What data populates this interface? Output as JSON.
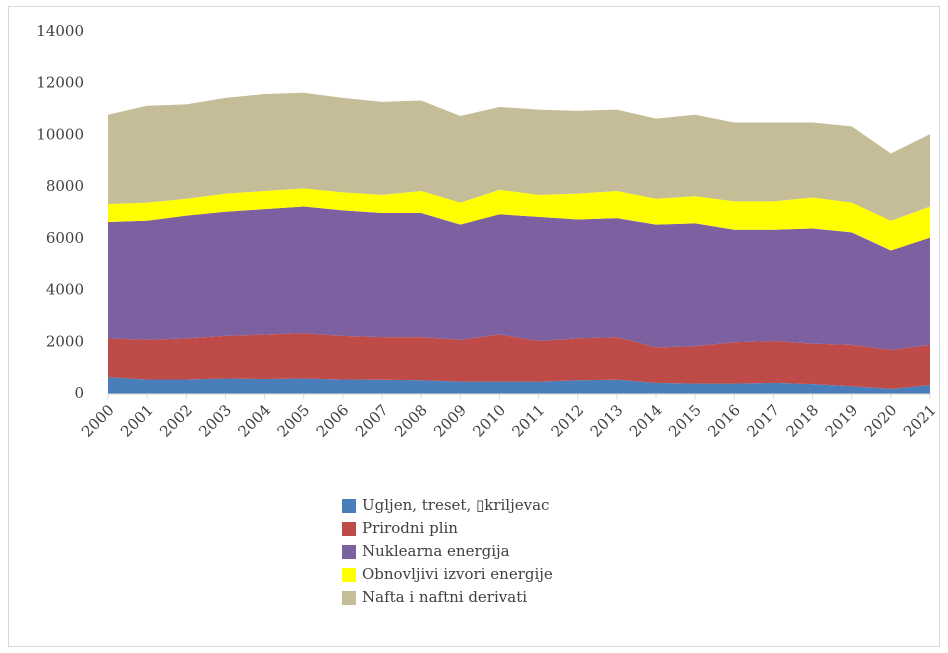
{
  "chart_data": {
    "type": "stacked_area",
    "categories": [
      "2000",
      "2001",
      "2002",
      "2003",
      "2004",
      "2005",
      "2006",
      "2007",
      "2008",
      "2009",
      "2010",
      "2011",
      "2012",
      "2013",
      "2014",
      "2015",
      "2016",
      "2017",
      "2018",
      "2019",
      "2020",
      "2021"
    ],
    "series": [
      {
        "name": "Ugljen, treset, ▯kriljevac",
        "color": "#4a7ebb",
        "values": [
          650,
          560,
          560,
          600,
          580,
          600,
          560,
          550,
          530,
          480,
          480,
          480,
          530,
          550,
          430,
          400,
          400,
          430,
          380,
          300,
          200,
          350
        ]
      },
      {
        "name": "Prirodni plin",
        "color": "#be4b48",
        "values": [
          1500,
          1540,
          1590,
          1650,
          1720,
          1750,
          1690,
          1650,
          1670,
          1620,
          1820,
          1570,
          1620,
          1650,
          1370,
          1450,
          1600,
          1620,
          1570,
          1600,
          1500,
          1550
        ]
      },
      {
        "name": "Nuklearna energija",
        "color": "#7d60a0",
        "values": [
          4500,
          4600,
          4750,
          4800,
          4850,
          4900,
          4850,
          4800,
          4800,
          4450,
          4650,
          4800,
          4600,
          4600,
          4750,
          4750,
          4350,
          4300,
          4450,
          4350,
          3850,
          4150
        ]
      },
      {
        "name": "Obnovljivi izvori energije",
        "color": "#ffff00",
        "values": [
          700,
          700,
          650,
          700,
          700,
          700,
          700,
          700,
          850,
          850,
          950,
          850,
          1000,
          1050,
          1000,
          1050,
          1100,
          1100,
          1200,
          1150,
          1150,
          1200
        ]
      },
      {
        "name": "Nafta i naftni derivati",
        "color": "#c4bd97",
        "values": [
          3450,
          3750,
          3650,
          3700,
          3750,
          3700,
          3650,
          3600,
          3500,
          3350,
          3200,
          3300,
          3200,
          3150,
          3100,
          3150,
          3050,
          3050,
          2900,
          2950,
          2600,
          2800
        ]
      }
    ],
    "ylim": [
      0,
      14000
    ],
    "yticks": [
      0,
      2000,
      4000,
      6000,
      8000,
      10000,
      12000,
      14000
    ],
    "grid": false
  }
}
